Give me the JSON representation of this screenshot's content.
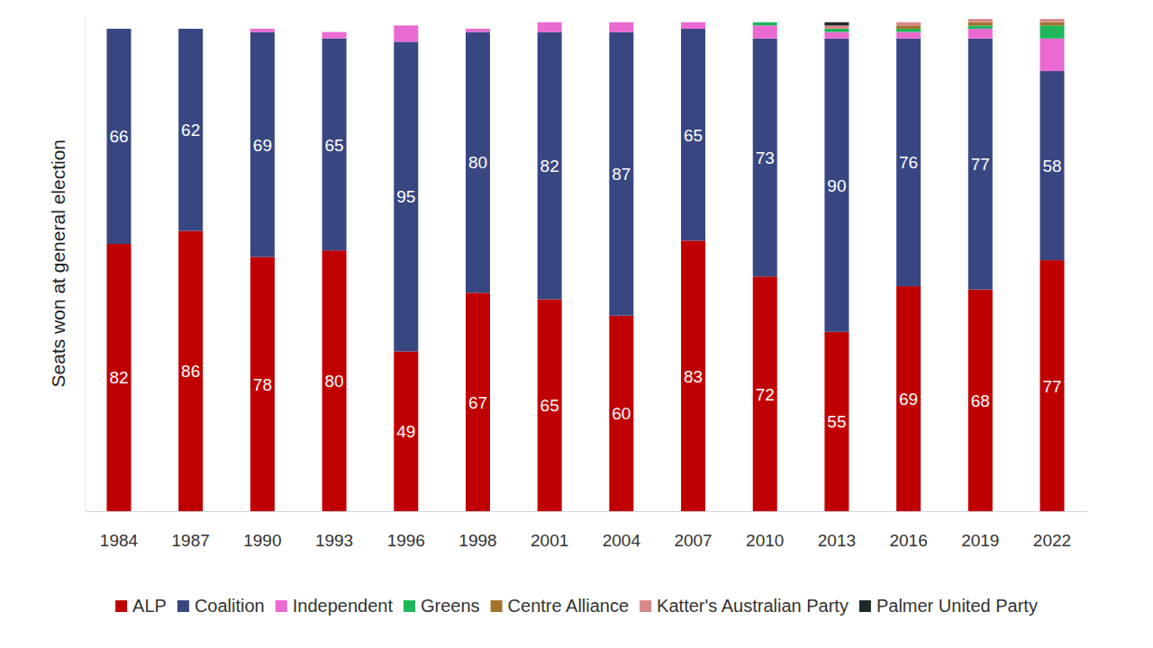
{
  "chart_data": {
    "type": "bar",
    "stacked": true,
    "y_label": "Seats won at general election",
    "categories": [
      "1984",
      "1987",
      "1990",
      "1993",
      "1996",
      "1998",
      "2001",
      "2004",
      "2007",
      "2010",
      "2013",
      "2016",
      "2019",
      "2022"
    ],
    "ylim": [
      0,
      152
    ],
    "tick_labels": "x",
    "legend": "bottom",
    "series": [
      {
        "name": "ALP",
        "color": "#c00000",
        "data_labels": true,
        "values": [
          82,
          86,
          78,
          80,
          49,
          67,
          65,
          60,
          83,
          72,
          55,
          69,
          68,
          77
        ]
      },
      {
        "name": "Coalition",
        "color": "#384682",
        "data_labels": true,
        "values": [
          66,
          62,
          69,
          65,
          95,
          80,
          82,
          87,
          65,
          73,
          90,
          76,
          77,
          58
        ]
      },
      {
        "name": "Independent",
        "color": "#ea6ad2",
        "data_labels": false,
        "values": [
          0,
          0,
          1,
          2,
          5,
          1,
          3,
          3,
          2,
          4,
          2,
          2,
          3,
          10
        ]
      },
      {
        "name": "Greens",
        "color": "#1fb75a",
        "data_labels": false,
        "values": [
          0,
          0,
          0,
          0,
          0,
          0,
          0,
          0,
          0,
          1,
          1,
          1,
          1,
          4
        ]
      },
      {
        "name": "Centre Alliance",
        "color": "#a2742c",
        "data_labels": false,
        "values": [
          0,
          0,
          0,
          0,
          0,
          0,
          0,
          0,
          0,
          0,
          0,
          1,
          1,
          1
        ]
      },
      {
        "name": "Katter's Australian Party",
        "color": "#d98888",
        "data_labels": false,
        "values": [
          0,
          0,
          0,
          0,
          0,
          0,
          0,
          0,
          0,
          0,
          1,
          1,
          1,
          1
        ]
      },
      {
        "name": "Palmer United Party",
        "color": "#1e2a2a",
        "data_labels": false,
        "values": [
          0,
          0,
          0,
          0,
          0,
          0,
          0,
          0,
          0,
          0,
          1,
          0,
          0,
          0
        ]
      }
    ]
  }
}
